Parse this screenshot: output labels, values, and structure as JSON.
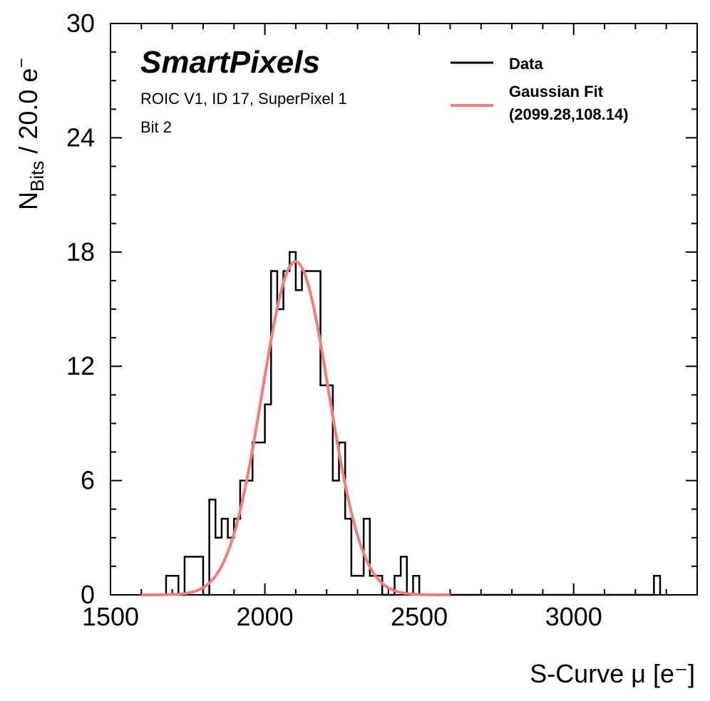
{
  "chart_data": {
    "type": "histogram",
    "brand": "SmartPixels",
    "info_lines": [
      "ROIC V1, ID 17, SuperPixel 1",
      "Bit 2"
    ],
    "xlabel": "S-Curve μ [e⁻]",
    "ylabel_main": "N",
    "ylabel_sub": "Bits",
    "ylabel_suffix": " / 20.0 e",
    "ylabel_sup": "−",
    "xlim": [
      1500,
      3400
    ],
    "ylim": [
      0,
      30
    ],
    "xticks": [
      1500,
      2000,
      2500,
      3000
    ],
    "xtick_labels": [
      "1500",
      "2000",
      "2500",
      "3000"
    ],
    "yticks": [
      0,
      6,
      12,
      18,
      24,
      30
    ],
    "ytick_labels": [
      "0",
      "6",
      "12",
      "18",
      "24",
      "30"
    ],
    "bin_width": 20,
    "bins": [
      {
        "x0": 1680,
        "count": 1
      },
      {
        "x0": 1700,
        "count": 1
      },
      {
        "x0": 1740,
        "count": 2
      },
      {
        "x0": 1760,
        "count": 2
      },
      {
        "x0": 1780,
        "count": 2
      },
      {
        "x0": 1820,
        "count": 5
      },
      {
        "x0": 1840,
        "count": 3
      },
      {
        "x0": 1860,
        "count": 4
      },
      {
        "x0": 1880,
        "count": 3
      },
      {
        "x0": 1900,
        "count": 4
      },
      {
        "x0": 1920,
        "count": 6
      },
      {
        "x0": 1940,
        "count": 6
      },
      {
        "x0": 1960,
        "count": 8
      },
      {
        "x0": 1980,
        "count": 8
      },
      {
        "x0": 2000,
        "count": 10
      },
      {
        "x0": 2020,
        "count": 17
      },
      {
        "x0": 2040,
        "count": 15
      },
      {
        "x0": 2060,
        "count": 17
      },
      {
        "x0": 2080,
        "count": 18
      },
      {
        "x0": 2100,
        "count": 16
      },
      {
        "x0": 2120,
        "count": 17
      },
      {
        "x0": 2140,
        "count": 17
      },
      {
        "x0": 2160,
        "count": 17
      },
      {
        "x0": 2180,
        "count": 11
      },
      {
        "x0": 2200,
        "count": 11
      },
      {
        "x0": 2220,
        "count": 6
      },
      {
        "x0": 2240,
        "count": 8
      },
      {
        "x0": 2260,
        "count": 4
      },
      {
        "x0": 2280,
        "count": 1
      },
      {
        "x0": 2300,
        "count": 1
      },
      {
        "x0": 2320,
        "count": 4
      },
      {
        "x0": 2340,
        "count": 1
      },
      {
        "x0": 2360,
        "count": 1
      },
      {
        "x0": 2420,
        "count": 1
      },
      {
        "x0": 2440,
        "count": 2
      },
      {
        "x0": 2480,
        "count": 1
      },
      {
        "x0": 3260,
        "count": 1
      }
    ],
    "fit": {
      "type": "gaussian",
      "mu": 2099.28,
      "sigma": 108.14,
      "amplitude": 17.5,
      "x_range": [
        1600,
        2600
      ],
      "color": "#f47c7c"
    },
    "series": [
      {
        "name": "Data",
        "color": "#000000"
      },
      {
        "name": "Gaussian Fit",
        "color": "#f47c7c",
        "params_label": "(2099.28,108.14)"
      }
    ],
    "legend_position": "top-right"
  }
}
